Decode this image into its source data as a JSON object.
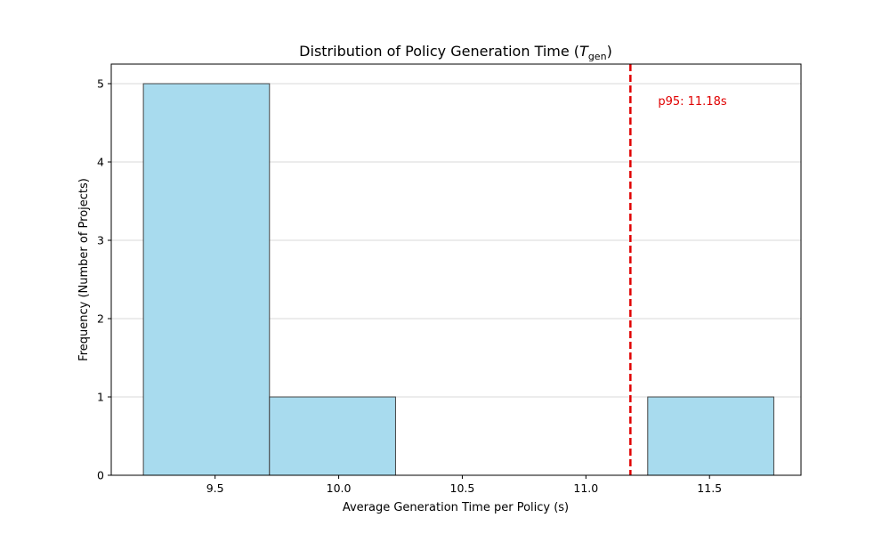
{
  "chart_data": {
    "type": "bar",
    "title": "Distribution of Policy Generation Time (",
    "title_symbol": "T",
    "title_subscript": "gen",
    "title_close": ")",
    "xlabel": "Average Generation Time per Policy (s)",
    "ylabel": "Frequency (Number of Projects)",
    "xlim": [
      9.08,
      11.87
    ],
    "ylim": [
      0,
      5.25
    ],
    "x_ticks": [
      9.5,
      10.0,
      10.5,
      11.0,
      11.5
    ],
    "x_tick_labels": [
      "9.5",
      "10.0",
      "10.5",
      "11.0",
      "11.5"
    ],
    "y_ticks": [
      0,
      1,
      2,
      3,
      4,
      5
    ],
    "y_tick_labels": [
      "0",
      "1",
      "2",
      "3",
      "4",
      "5"
    ],
    "grid": "y",
    "bins": [
      {
        "start": 9.21,
        "end": 9.72,
        "count": 5
      },
      {
        "start": 9.72,
        "end": 10.23,
        "count": 1
      },
      {
        "start": 10.23,
        "end": 10.74,
        "count": 0
      },
      {
        "start": 10.74,
        "end": 11.25,
        "count": 0
      },
      {
        "start": 11.25,
        "end": 11.76,
        "count": 1
      }
    ],
    "bar_color": "#a8dbee",
    "bar_edge_color": "#444444",
    "reference_line": {
      "x": 11.18,
      "label": "p95: 11.18s",
      "color": "#e00000",
      "style": "dashed"
    }
  }
}
